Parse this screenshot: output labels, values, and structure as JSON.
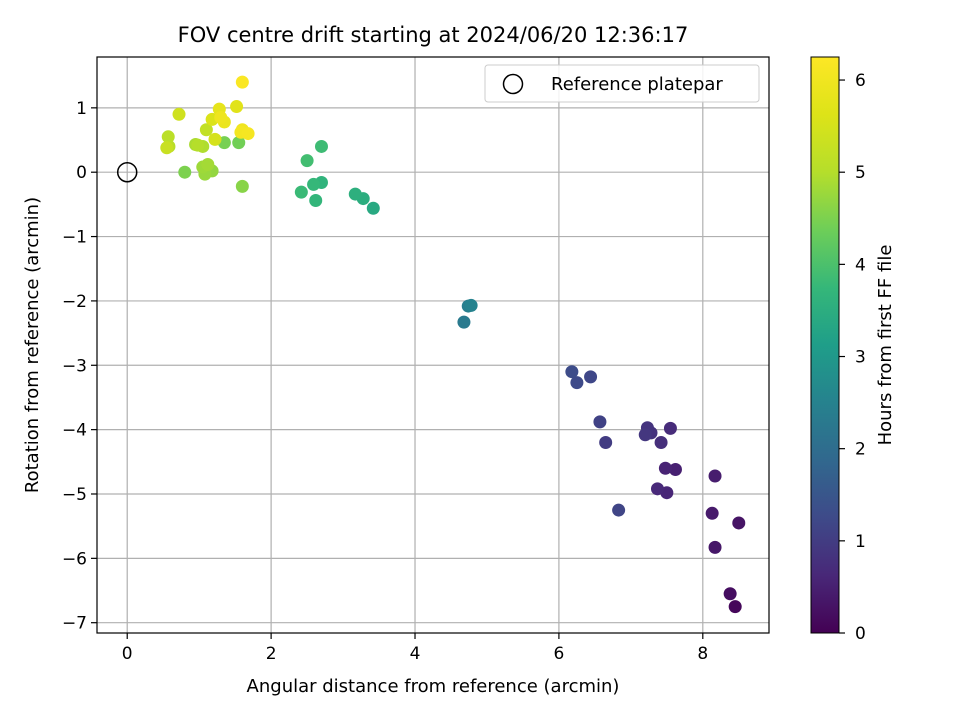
{
  "chart_data": {
    "type": "scatter",
    "title": "FOV centre drift starting at 2024/06/20 12:36:17",
    "xlabel": "Angular distance from reference (arcmin)",
    "ylabel": "Rotation from reference (arcmin)",
    "xlim": [
      -0.42,
      8.92
    ],
    "ylim": [
      -7.16,
      1.79
    ],
    "xticks": [
      0,
      2,
      4,
      6,
      8
    ],
    "yticks": [
      1,
      0,
      -1,
      -2,
      -3,
      -4,
      -5,
      -6,
      -7
    ],
    "grid": true,
    "legend": {
      "placement": "top-right",
      "entries": [
        {
          "label": "Reference platepar",
          "marker": "open-circle"
        }
      ]
    },
    "reference_point": {
      "x": 0,
      "y": 0
    },
    "colorbar": {
      "label": "Hours from first FF file",
      "colormap": "viridis",
      "range": [
        0,
        6.25
      ],
      "ticks": [
        0,
        1,
        2,
        3,
        4,
        5,
        6
      ]
    },
    "points": [
      {
        "x": 8.45,
        "y": -6.75,
        "t": 0.1
      },
      {
        "x": 8.38,
        "y": -6.55,
        "t": 0.2
      },
      {
        "x": 8.5,
        "y": -5.45,
        "t": 0.3
      },
      {
        "x": 8.17,
        "y": -5.83,
        "t": 0.35
      },
      {
        "x": 8.13,
        "y": -5.3,
        "t": 0.4
      },
      {
        "x": 8.17,
        "y": -4.72,
        "t": 0.45
      },
      {
        "x": 7.62,
        "y": -4.62,
        "t": 0.5
      },
      {
        "x": 7.48,
        "y": -4.6,
        "t": 0.55
      },
      {
        "x": 7.5,
        "y": -4.98,
        "t": 0.6
      },
      {
        "x": 7.37,
        "y": -4.92,
        "t": 0.65
      },
      {
        "x": 7.55,
        "y": -3.98,
        "t": 0.7
      },
      {
        "x": 7.42,
        "y": -4.2,
        "t": 0.75
      },
      {
        "x": 7.28,
        "y": -4.05,
        "t": 0.8
      },
      {
        "x": 7.23,
        "y": -3.97,
        "t": 0.85
      },
      {
        "x": 7.2,
        "y": -4.08,
        "t": 0.9
      },
      {
        "x": 6.65,
        "y": -4.2,
        "t": 1.0
      },
      {
        "x": 6.57,
        "y": -3.88,
        "t": 1.1
      },
      {
        "x": 6.83,
        "y": -5.25,
        "t": 1.15
      },
      {
        "x": 6.44,
        "y": -3.18,
        "t": 1.2
      },
      {
        "x": 6.25,
        "y": -3.27,
        "t": 1.25
      },
      {
        "x": 6.18,
        "y": -3.1,
        "t": 1.3
      },
      {
        "x": 4.68,
        "y": -2.33,
        "t": 2.3
      },
      {
        "x": 4.74,
        "y": -2.08,
        "t": 2.4
      },
      {
        "x": 4.78,
        "y": -2.07,
        "t": 2.5
      },
      {
        "x": 3.42,
        "y": -0.56,
        "t": 3.4
      },
      {
        "x": 3.28,
        "y": -0.41,
        "t": 3.5
      },
      {
        "x": 3.17,
        "y": -0.34,
        "t": 3.55
      },
      {
        "x": 2.7,
        "y": -0.16,
        "t": 3.65
      },
      {
        "x": 2.62,
        "y": -0.44,
        "t": 3.7
      },
      {
        "x": 2.59,
        "y": -0.19,
        "t": 3.75
      },
      {
        "x": 2.42,
        "y": -0.31,
        "t": 3.8
      },
      {
        "x": 2.7,
        "y": 0.4,
        "t": 3.85
      },
      {
        "x": 2.5,
        "y": 0.18,
        "t": 3.9
      },
      {
        "x": 1.55,
        "y": 0.46,
        "t": 4.4
      },
      {
        "x": 1.35,
        "y": 0.46,
        "t": 4.45
      },
      {
        "x": 0.8,
        "y": 0.0,
        "t": 4.5
      },
      {
        "x": 1.6,
        "y": -0.22,
        "t": 4.6
      },
      {
        "x": 1.18,
        "y": 0.02,
        "t": 4.7
      },
      {
        "x": 1.08,
        "y": -0.03,
        "t": 4.75
      },
      {
        "x": 1.05,
        "y": 0.08,
        "t": 4.8
      },
      {
        "x": 1.12,
        "y": 0.12,
        "t": 4.85
      },
      {
        "x": 0.95,
        "y": 0.43,
        "t": 4.9
      },
      {
        "x": 1.05,
        "y": 0.4,
        "t": 4.95
      },
      {
        "x": 0.98,
        "y": 0.42,
        "t": 5.0
      },
      {
        "x": 0.58,
        "y": 0.4,
        "t": 5.05
      },
      {
        "x": 0.57,
        "y": 0.55,
        "t": 5.1
      },
      {
        "x": 1.1,
        "y": 0.66,
        "t": 5.2
      },
      {
        "x": 0.55,
        "y": 0.38,
        "t": 5.3
      },
      {
        "x": 0.72,
        "y": 0.9,
        "t": 5.4
      },
      {
        "x": 1.22,
        "y": 0.51,
        "t": 5.5
      },
      {
        "x": 1.18,
        "y": 0.82,
        "t": 5.6
      },
      {
        "x": 1.52,
        "y": 1.02,
        "t": 5.7
      },
      {
        "x": 1.28,
        "y": 0.98,
        "t": 5.8
      },
      {
        "x": 1.35,
        "y": 0.78,
        "t": 5.9
      },
      {
        "x": 1.3,
        "y": 0.85,
        "t": 5.95
      },
      {
        "x": 1.6,
        "y": 0.66,
        "t": 6.0
      },
      {
        "x": 1.58,
        "y": 0.62,
        "t": 6.05
      },
      {
        "x": 1.68,
        "y": 0.6,
        "t": 6.1
      },
      {
        "x": 1.6,
        "y": 1.4,
        "t": 6.2
      }
    ]
  }
}
